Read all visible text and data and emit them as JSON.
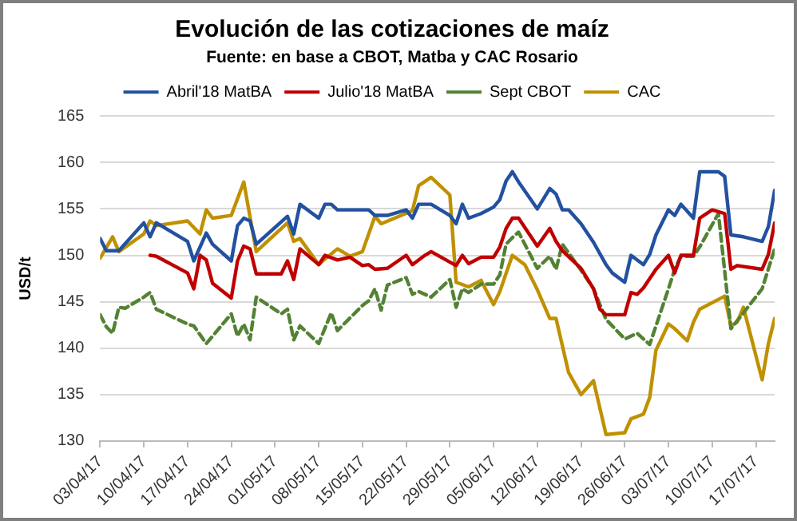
{
  "chart_data": {
    "type": "line",
    "title": "Evolución de las cotizaciones de maíz",
    "subtitle": "Fuente: en base a CBOT, Matba y CAC Rosario",
    "ylabel": "USD/t",
    "ylim": [
      130,
      165
    ],
    "yticks": [
      130,
      135,
      140,
      145,
      150,
      155,
      160,
      165
    ],
    "xlim": [
      "--04-03",
      "--07-20"
    ],
    "xticks": [
      {
        "value": "--04-03",
        "label": "03/04/17"
      },
      {
        "value": "--04-10",
        "label": "10/04/17"
      },
      {
        "value": "--04-17",
        "label": "17/04/17"
      },
      {
        "value": "--04-24",
        "label": "24/04/17"
      },
      {
        "value": "--05-01",
        "label": "01/05/17"
      },
      {
        "value": "--05-08",
        "label": "08/05/17"
      },
      {
        "value": "--05-15",
        "label": "15/05/17"
      },
      {
        "value": "--05-22",
        "label": "22/05/17"
      },
      {
        "value": "--05-29",
        "label": "29/05/17"
      },
      {
        "value": "--06-05",
        "label": "05/06/17"
      },
      {
        "value": "--06-12",
        "label": "12/06/17"
      },
      {
        "value": "--06-19",
        "label": "19/06/17"
      },
      {
        "value": "--06-26",
        "label": "26/06/17"
      },
      {
        "value": "--07-03",
        "label": "03/07/17"
      },
      {
        "value": "--07-10",
        "label": "10/07/17"
      },
      {
        "value": "--07-17",
        "label": "17/07/17"
      }
    ],
    "grid": "y",
    "legend": "top",
    "marker": "none",
    "series": [
      {
        "name": "Abril'18 MatBA",
        "color": "#2251a0",
        "x": [
          "--04-03",
          "--04-04",
          "--04-06",
          "--04-10",
          "--04-11",
          "--04-12",
          "--04-17",
          "--04-18",
          "--04-20",
          "--04-21",
          "--04-24",
          "--04-25",
          "--04-26",
          "--04-27",
          "--04-28",
          "--05-03",
          "--05-04",
          "--05-05",
          "--05-08",
          "--05-09",
          "--05-10",
          "--05-11",
          "--05-16",
          "--05-17",
          "--05-19",
          "--05-22",
          "--05-23",
          "--05-24",
          "--05-26",
          "--05-29",
          "--05-30",
          "--05-31",
          "--06-01",
          "--06-03",
          "--06-05",
          "--06-06",
          "--06-07",
          "--06-08",
          "--06-09",
          "--06-12",
          "--06-14",
          "--06-15",
          "--06-16",
          "--06-17",
          "--06-19",
          "--06-21",
          "--06-23",
          "--06-24",
          "--06-26",
          "--06-27",
          "--06-29",
          "--06-30",
          "--07-01",
          "--07-03",
          "--07-04",
          "--07-05",
          "--07-07",
          "--07-08",
          "--07-11",
          "--07-12",
          "--07-13",
          "--07-15",
          "--07-18",
          "--07-19",
          "--07-20"
        ],
        "values": [
          151.8,
          150.5,
          150.5,
          153.5,
          152.0,
          153.5,
          151.5,
          149.4,
          152.4,
          151.2,
          149.4,
          153.2,
          154.0,
          153.7,
          151.2,
          154.2,
          152.3,
          155.5,
          154.0,
          155.5,
          155.5,
          154.9,
          154.9,
          154.3,
          154.3,
          154.9,
          154.0,
          155.5,
          155.5,
          154.3,
          153.4,
          155.5,
          154.0,
          154.5,
          155.2,
          156.0,
          158.0,
          159.0,
          157.9,
          155.0,
          157.2,
          156.6,
          154.9,
          154.9,
          153.4,
          151.4,
          149.0,
          148.1,
          147.1,
          150.0,
          149.0,
          150.1,
          152.2,
          154.9,
          154.3,
          155.5,
          154.0,
          159.0,
          159.0,
          158.5,
          152.2,
          152.0,
          151.5,
          153.1,
          157.0
        ]
      },
      {
        "name": "Julio'18 MatBA",
        "color": "#c00000",
        "x": [
          "--04-11",
          "--04-12",
          "--04-17",
          "--04-18",
          "--04-19",
          "--04-20",
          "--04-21",
          "--04-24",
          "--04-25",
          "--04-26",
          "--04-27",
          "--04-28",
          "--05-02",
          "--05-03",
          "--05-04",
          "--05-05",
          "--05-08",
          "--05-09",
          "--05-11",
          "--05-13",
          "--05-15",
          "--05-16",
          "--05-17",
          "--05-19",
          "--05-22",
          "--05-23",
          "--05-25",
          "--05-26",
          "--05-30",
          "--05-31",
          "--06-01",
          "--06-03",
          "--06-05",
          "--06-06",
          "--06-07",
          "--06-08",
          "--06-09",
          "--06-12",
          "--06-14",
          "--06-15",
          "--06-16",
          "--06-19",
          "--06-21",
          "--06-22",
          "--06-23",
          "--06-26",
          "--06-27",
          "--06-28",
          "--06-29",
          "--07-01",
          "--07-03",
          "--07-04",
          "--07-05",
          "--07-07",
          "--07-08",
          "--07-10",
          "--07-12",
          "--07-13",
          "--07-14",
          "--07-18",
          "--07-19",
          "--07-20"
        ],
        "values": [
          150.0,
          149.9,
          148.1,
          146.4,
          150.0,
          149.5,
          147.0,
          145.4,
          149.4,
          151.0,
          150.7,
          148.0,
          148.0,
          149.4,
          147.4,
          150.7,
          149.0,
          150.0,
          149.5,
          149.8,
          148.9,
          149.0,
          148.5,
          148.6,
          150.0,
          149.0,
          150.0,
          150.4,
          148.9,
          150.0,
          149.1,
          149.8,
          149.8,
          150.9,
          152.9,
          154.0,
          154.0,
          151.0,
          152.9,
          151.5,
          150.5,
          148.6,
          146.4,
          144.2,
          143.6,
          143.6,
          146.0,
          145.8,
          146.5,
          148.5,
          150.0,
          148.1,
          150.0,
          150.0,
          154.0,
          154.9,
          154.5,
          148.5,
          148.9,
          148.5,
          150.1,
          153.5
        ]
      },
      {
        "name": "Sept CBOT",
        "color": "#548235",
        "line_style": "dashed",
        "x": [
          "--04-03",
          "--04-04",
          "--04-05",
          "--04-06",
          "--04-07",
          "--04-10",
          "--04-11",
          "--04-12",
          "--04-17",
          "--04-18",
          "--04-20",
          "--04-24",
          "--04-25",
          "--04-26",
          "--04-27",
          "--04-28",
          "--05-02",
          "--05-03",
          "--05-04",
          "--05-05",
          "--05-08",
          "--05-10",
          "--05-11",
          "--05-15",
          "--05-16",
          "--05-17",
          "--05-18",
          "--05-19",
          "--05-22",
          "--05-23",
          "--05-24",
          "--05-26",
          "--05-29",
          "--05-30",
          "--05-31",
          "--06-01",
          "--06-03",
          "--06-05",
          "--06-06",
          "--06-07",
          "--06-08",
          "--06-09",
          "--06-12",
          "--06-14",
          "--06-15",
          "--06-16",
          "--06-19",
          "--06-21",
          "--06-23",
          "--06-26",
          "--06-28",
          "--06-30",
          "--07-03",
          "--07-04",
          "--07-05",
          "--07-07",
          "--07-08",
          "--07-11",
          "--07-13",
          "--07-15",
          "--07-18",
          "--07-20"
        ],
        "values": [
          143.6,
          142.3,
          141.6,
          144.4,
          144.3,
          145.5,
          146.0,
          144.2,
          142.6,
          142.4,
          140.5,
          143.7,
          141.3,
          142.6,
          140.9,
          145.5,
          143.7,
          144.2,
          140.9,
          142.4,
          140.5,
          143.8,
          141.9,
          144.6,
          145.1,
          146.4,
          144.1,
          146.8,
          147.6,
          145.8,
          146.1,
          145.5,
          147.4,
          144.4,
          146.4,
          146.0,
          146.9,
          146.9,
          147.9,
          151.2,
          151.9,
          152.5,
          148.6,
          149.9,
          148.5,
          151.2,
          148.4,
          146.4,
          143.1,
          141.0,
          141.6,
          140.4,
          146.4,
          148.5,
          149.9,
          149.9,
          150.9,
          154.5,
          142.1,
          143.8,
          146.4,
          150.7
        ]
      },
      {
        "name": "CAC",
        "color": "#c09000",
        "x": [
          "--04-03",
          "--04-05",
          "--04-06",
          "--04-10",
          "--04-11",
          "--04-12",
          "--04-17",
          "--04-19",
          "--04-20",
          "--04-21",
          "--04-24",
          "--04-26",
          "--04-28",
          "--05-03",
          "--05-04",
          "--05-05",
          "--05-08",
          "--05-09",
          "--05-11",
          "--05-13",
          "--05-15",
          "--05-17",
          "--05-18",
          "--05-23",
          "--05-24",
          "--05-26",
          "--05-29",
          "--05-30",
          "--06-01",
          "--06-03",
          "--06-05",
          "--06-06",
          "--06-08",
          "--06-10",
          "--06-12",
          "--06-14",
          "--06-15",
          "--06-17",
          "--06-19",
          "--06-21",
          "--06-23",
          "--06-26",
          "--06-27",
          "--06-29",
          "--06-30",
          "--07-01",
          "--07-03",
          "--07-04",
          "--07-06",
          "--07-07",
          "--07-08",
          "--07-12",
          "--07-13",
          "--07-14",
          "--07-15",
          "--07-18",
          "--07-19",
          "--07-20"
        ],
        "values": [
          149.7,
          152.0,
          150.4,
          152.3,
          153.7,
          153.2,
          153.7,
          152.3,
          154.9,
          154.0,
          154.3,
          157.9,
          150.4,
          153.5,
          151.5,
          151.8,
          149.0,
          149.6,
          150.7,
          149.9,
          150.4,
          154.2,
          153.4,
          154.8,
          157.5,
          158.4,
          156.5,
          147.1,
          146.6,
          147.3,
          144.7,
          146.1,
          150.0,
          149.0,
          146.3,
          143.2,
          143.2,
          137.4,
          135.0,
          136.5,
          130.7,
          130.9,
          132.4,
          132.9,
          134.7,
          139.8,
          142.6,
          142.1,
          140.8,
          142.8,
          144.2,
          145.6,
          142.4,
          142.8,
          144.4,
          136.6,
          140.5,
          143.2
        ]
      }
    ]
  }
}
